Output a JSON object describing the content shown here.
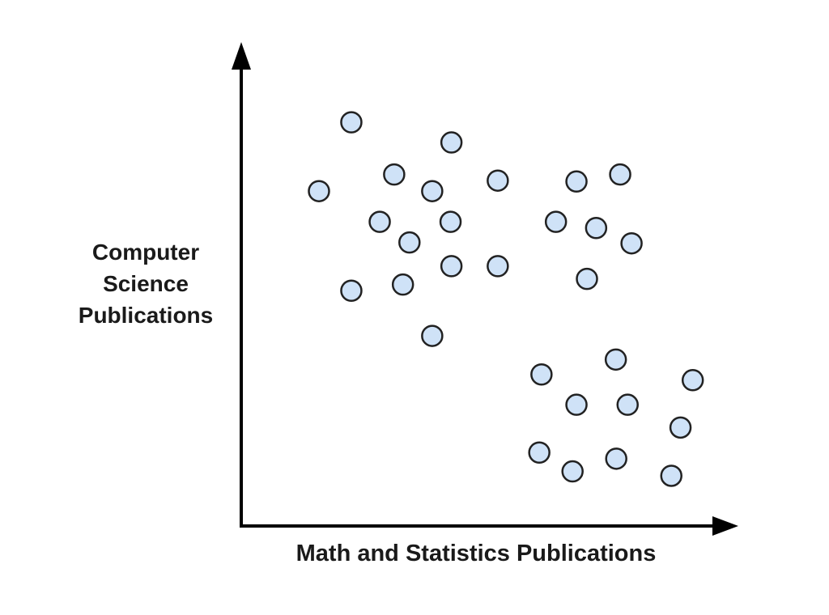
{
  "chart_data": {
    "type": "scatter",
    "xlabel": "Math and Statistics Publications",
    "ylabel_lines": [
      "Computer",
      "Science",
      "Publications"
    ],
    "axes_ticks": false,
    "grid": false,
    "point_fill": "#cfe2f7",
    "point_stroke": "#222222",
    "xlim": [
      0,
      100
    ],
    "ylim": [
      0,
      100
    ],
    "points": [
      {
        "x": 17.4,
        "y": 90.2
      },
      {
        "x": 40.3,
        "y": 85.6
      },
      {
        "x": 27.2,
        "y": 78.3
      },
      {
        "x": 10.0,
        "y": 74.5
      },
      {
        "x": 35.9,
        "y": 74.5
      },
      {
        "x": 50.9,
        "y": 76.9
      },
      {
        "x": 23.9,
        "y": 67.5
      },
      {
        "x": 40.1,
        "y": 67.5
      },
      {
        "x": 30.7,
        "y": 62.8
      },
      {
        "x": 40.3,
        "y": 57.4
      },
      {
        "x": 50.9,
        "y": 57.4
      },
      {
        "x": 17.4,
        "y": 51.8
      },
      {
        "x": 29.2,
        "y": 53.2
      },
      {
        "x": 35.9,
        "y": 41.5
      },
      {
        "x": 68.9,
        "y": 76.7
      },
      {
        "x": 78.9,
        "y": 78.3
      },
      {
        "x": 64.2,
        "y": 67.5
      },
      {
        "x": 73.4,
        "y": 66.1
      },
      {
        "x": 81.5,
        "y": 62.6
      },
      {
        "x": 71.3,
        "y": 54.5
      },
      {
        "x": 60.9,
        "y": 32.7
      },
      {
        "x": 77.9,
        "y": 36.1
      },
      {
        "x": 95.5,
        "y": 31.4
      },
      {
        "x": 68.9,
        "y": 25.8
      },
      {
        "x": 80.6,
        "y": 25.8
      },
      {
        "x": 92.7,
        "y": 20.6
      },
      {
        "x": 60.4,
        "y": 14.9
      },
      {
        "x": 78.0,
        "y": 13.5
      },
      {
        "x": 68.0,
        "y": 10.6
      },
      {
        "x": 90.6,
        "y": 9.6
      }
    ]
  }
}
